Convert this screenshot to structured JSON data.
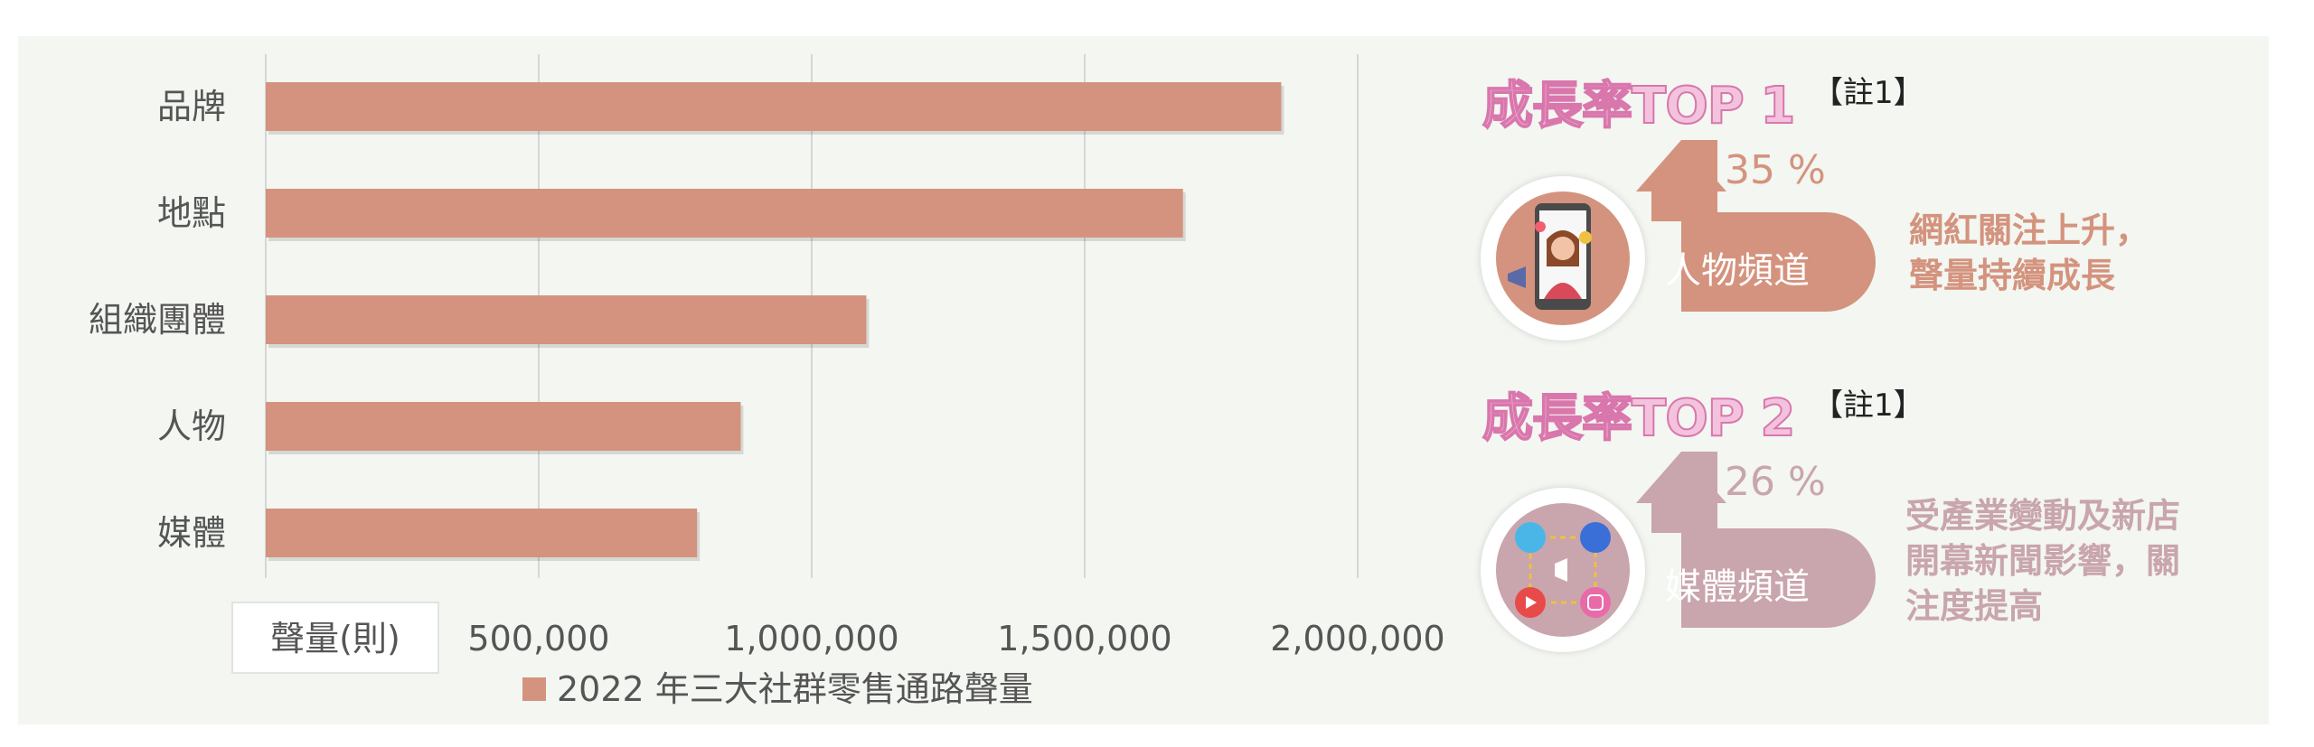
{
  "chart_data": {
    "type": "bar",
    "orientation": "horizontal",
    "categories": [
      "品牌",
      "地點",
      "組織團體",
      "人物",
      "媒體"
    ],
    "series": [
      {
        "name": "2022 年三大社群零售通路聲量",
        "values": [
          1860000,
          1680000,
          1100000,
          870000,
          790000
        ]
      }
    ],
    "xticks": [
      "500,000",
      "1,000,000",
      "1,500,000",
      "2,000,000"
    ],
    "xtick_values": [
      500000,
      1000000,
      1500000,
      2000000
    ],
    "xlim": [
      0,
      2000000
    ],
    "xlabel": "聲量(則)",
    "grid": true,
    "legend_position": "bottom",
    "bar_color": "#d4937e"
  },
  "highlights": [
    {
      "title": "成長率TOP 1",
      "note": "【註1】",
      "pct": "35 %",
      "channel": "人物頻道",
      "desc_lines": [
        "網紅關注上升，",
        "聲量持續成長"
      ],
      "color": "#d4937e",
      "icon": "influencer-phone-icon"
    },
    {
      "title": "成長率TOP 2",
      "note": "【註1】",
      "pct": "26 %",
      "channel": "媒體頻道",
      "desc_lines": [
        "受產業變動及新店",
        "開幕新聞影響，關",
        "注度提高"
      ],
      "color": "#c9a5ad",
      "icon": "social-media-icon"
    }
  ]
}
